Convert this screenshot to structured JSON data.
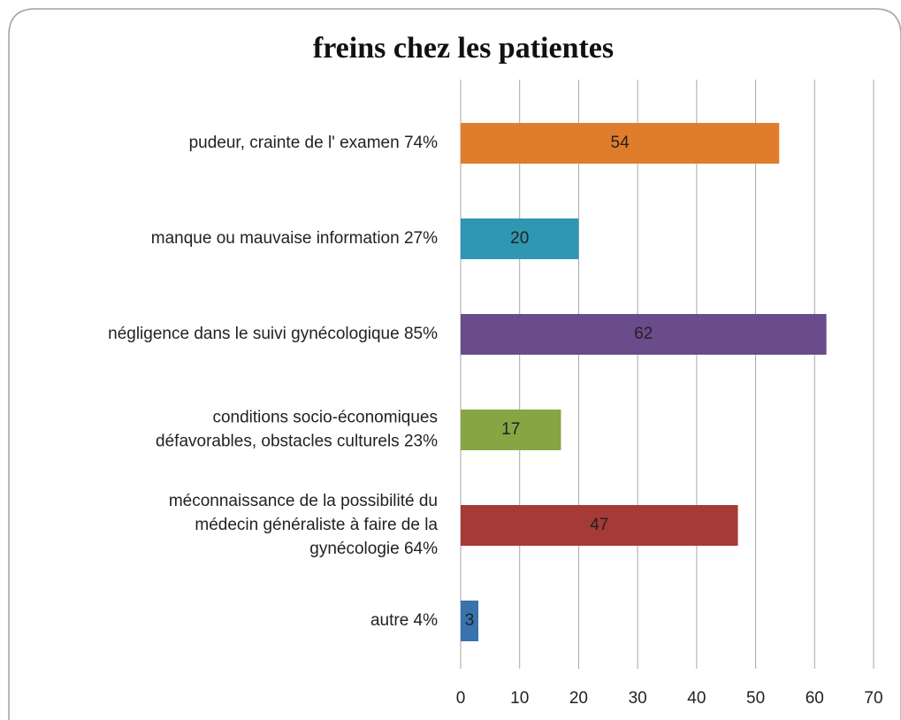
{
  "chart_data": {
    "type": "barh",
    "title": "freins chez les patientes",
    "categories": [
      [
        "pudeur, crainte de l' examen 74%"
      ],
      [
        "manque ou mauvaise information 27%"
      ],
      [
        "négligence dans le suivi gynécologique 85%"
      ],
      [
        "conditions socio-économiques",
        "défavorables, obstacles culturels 23%"
      ],
      [
        "méconnaissance de la possibilité du",
        "médecin généraliste à faire de la",
        "gynécologie 64%"
      ],
      [
        "autre 4%"
      ]
    ],
    "values": [
      54,
      20,
      62,
      17,
      47,
      3
    ],
    "colors": [
      "#e07d2c",
      "#2f97b1",
      "#6a4b8b",
      "#87a543",
      "#a63a36",
      "#3a72ad"
    ],
    "xlim": [
      0,
      70
    ],
    "xticks": [
      0,
      10,
      20,
      30,
      40,
      50,
      60,
      70
    ],
    "grid": true
  }
}
